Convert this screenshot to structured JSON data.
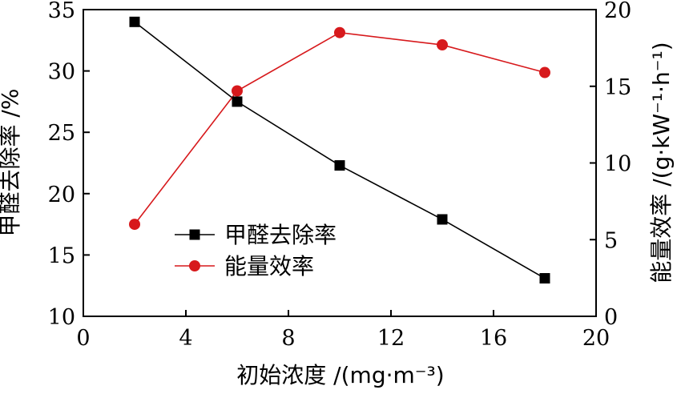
{
  "chart_data": {
    "type": "line",
    "x": [
      2,
      6,
      10,
      14,
      18
    ],
    "xlabel": "初始浓度 /(mg·m⁻³)",
    "xlim": [
      0,
      20
    ],
    "xticks": [
      0,
      4,
      8,
      12,
      16,
      20
    ],
    "ylabel_left": "甲醛去除率 /%",
    "ylim_left": [
      10,
      35
    ],
    "yticks_left": [
      10,
      15,
      20,
      25,
      30,
      35
    ],
    "ylabel_right": "能量效率 /(g·kW⁻¹·h⁻¹)",
    "ylim_right": [
      0,
      20
    ],
    "yticks_right": [
      0,
      5,
      10,
      15,
      20
    ],
    "grid": false,
    "legend_position": "center-left",
    "series": [
      {
        "name": "甲醛去除率",
        "axis": "left",
        "marker": "square",
        "color": "#000000",
        "values": [
          34.0,
          27.5,
          22.3,
          17.9,
          13.1
        ]
      },
      {
        "name": "能量效率",
        "axis": "right",
        "marker": "circle",
        "color": "#d7191c",
        "values": [
          6.0,
          14.7,
          18.5,
          17.7,
          15.9
        ]
      }
    ]
  }
}
